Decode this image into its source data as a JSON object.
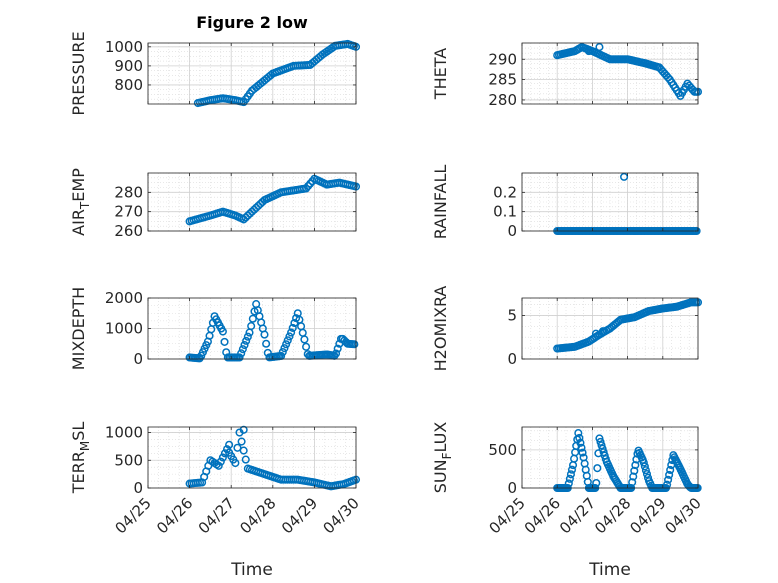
{
  "figure": {
    "title": "Figure 2 low"
  },
  "marker_color": "#0072BD",
  "x_tick_labels": [
    "04/25",
    "04/26",
    "04/27",
    "04/28",
    "04/29",
    "04/30"
  ],
  "x_label": "Time",
  "chart_data": [
    {
      "type": "scatter",
      "id": "pressure",
      "title": "Figure 2 low",
      "ylabel_main": "PRESSURE",
      "ylabel_sub": "",
      "ylabel_tail": "",
      "xlim": [
        0,
        5
      ],
      "ylim": [
        700,
        1020
      ],
      "yticks": [
        800,
        900,
        1000
      ],
      "ytick_labels": [
        "800",
        "900",
        "1000"
      ],
      "grid": true,
      "minor_grid": true,
      "knots": [
        [
          1.2,
          705
        ],
        [
          1.5,
          720
        ],
        [
          1.8,
          730
        ],
        [
          2.1,
          720
        ],
        [
          2.3,
          710
        ],
        [
          2.5,
          770
        ],
        [
          3.0,
          860
        ],
        [
          3.5,
          900
        ],
        [
          3.9,
          905
        ],
        [
          4.2,
          960
        ],
        [
          4.5,
          1005
        ],
        [
          4.8,
          1015
        ],
        [
          5.0,
          1000
        ]
      ],
      "step": 0.05,
      "extra": []
    },
    {
      "type": "scatter",
      "id": "theta",
      "title": "",
      "ylabel_main": "THETA",
      "ylabel_sub": "",
      "ylabel_tail": "",
      "xlim": [
        0,
        5
      ],
      "ylim": [
        279,
        294
      ],
      "yticks": [
        280,
        285,
        290
      ],
      "ytick_labels": [
        "280",
        "285",
        "290"
      ],
      "grid": true,
      "minor_grid": true,
      "knots": [
        [
          1.0,
          291
        ],
        [
          1.5,
          292
        ],
        [
          1.7,
          293
        ],
        [
          2.0,
          292
        ],
        [
          2.5,
          290
        ],
        [
          3.0,
          290
        ],
        [
          3.5,
          289
        ],
        [
          3.9,
          288
        ],
        [
          4.2,
          285
        ],
        [
          4.5,
          281
        ],
        [
          4.7,
          284
        ],
        [
          4.9,
          282
        ],
        [
          5.0,
          282
        ]
      ],
      "step": 0.05,
      "extra": [
        [
          2.2,
          293
        ],
        [
          1.9,
          292
        ]
      ]
    },
    {
      "type": "scatter",
      "id": "air_temp",
      "title": "",
      "ylabel_main": "AIR",
      "ylabel_sub": "T",
      "ylabel_tail": "EMP",
      "xlim": [
        0,
        5
      ],
      "ylim": [
        260,
        290
      ],
      "yticks": [
        260,
        270,
        280
      ],
      "ytick_labels": [
        "260",
        "270",
        "280"
      ],
      "grid": true,
      "minor_grid": true,
      "knots": [
        [
          1.0,
          265
        ],
        [
          1.5,
          268
        ],
        [
          1.8,
          270
        ],
        [
          2.1,
          268
        ],
        [
          2.3,
          266
        ],
        [
          2.5,
          270
        ],
        [
          2.8,
          276
        ],
        [
          3.2,
          280
        ],
        [
          3.5,
          281
        ],
        [
          3.8,
          282
        ],
        [
          4.0,
          287
        ],
        [
          4.3,
          284
        ],
        [
          4.6,
          285
        ],
        [
          5.0,
          283
        ]
      ],
      "step": 0.05,
      "extra": []
    },
    {
      "type": "scatter",
      "id": "rainfall",
      "title": "",
      "ylabel_main": "RAINFALL",
      "ylabel_sub": "",
      "ylabel_tail": "",
      "xlim": [
        0,
        5
      ],
      "ylim": [
        0,
        0.3
      ],
      "yticks": [
        0,
        0.1,
        0.2
      ],
      "ytick_labels": [
        "0",
        "0.1",
        "0.2"
      ],
      "grid": true,
      "minor_grid": true,
      "knots": [
        [
          1.0,
          0
        ],
        [
          5.0,
          0
        ]
      ],
      "step": 0.04,
      "extra": [
        [
          2.9,
          0.28
        ]
      ]
    },
    {
      "type": "scatter",
      "id": "mixdepth",
      "title": "",
      "ylabel_main": "MIXDEPTH",
      "ylabel_sub": "",
      "ylabel_tail": "",
      "xlim": [
        0,
        5
      ],
      "ylim": [
        0,
        2000
      ],
      "yticks": [
        0,
        1000,
        2000
      ],
      "ytick_labels": [
        "0",
        "1000",
        "2000"
      ],
      "grid": true,
      "minor_grid": true,
      "knots": [
        [
          1.0,
          50
        ],
        [
          1.25,
          20
        ],
        [
          1.45,
          600
        ],
        [
          1.6,
          1400
        ],
        [
          1.8,
          900
        ],
        [
          1.9,
          50
        ],
        [
          2.2,
          50
        ],
        [
          2.45,
          900
        ],
        [
          2.6,
          1800
        ],
        [
          2.8,
          800
        ],
        [
          2.9,
          50
        ],
        [
          3.2,
          100
        ],
        [
          3.45,
          900
        ],
        [
          3.6,
          1500
        ],
        [
          3.75,
          700
        ],
        [
          3.85,
          100
        ],
        [
          4.3,
          150
        ],
        [
          4.5,
          100
        ],
        [
          4.65,
          700
        ],
        [
          4.8,
          500
        ],
        [
          5.0,
          480
        ]
      ],
      "step": 0.04,
      "extra": []
    },
    {
      "type": "scatter",
      "id": "h2omixra",
      "title": "",
      "ylabel_main": "H2OMIXRA",
      "ylabel_sub": "",
      "ylabel_tail": "",
      "xlim": [
        0,
        5
      ],
      "ylim": [
        0,
        7
      ],
      "yticks": [
        0,
        5
      ],
      "ytick_labels": [
        "0",
        "5"
      ],
      "grid": true,
      "minor_grid": true,
      "knots": [
        [
          1.0,
          1.2
        ],
        [
          1.5,
          1.4
        ],
        [
          1.9,
          2.0
        ],
        [
          2.2,
          2.8
        ],
        [
          2.5,
          3.5
        ],
        [
          2.8,
          4.5
        ],
        [
          3.2,
          4.8
        ],
        [
          3.6,
          5.5
        ],
        [
          4.0,
          5.8
        ],
        [
          4.4,
          6.0
        ],
        [
          4.8,
          6.5
        ],
        [
          5.0,
          6.5
        ]
      ],
      "step": 0.05,
      "extra": [
        [
          2.1,
          2.9
        ],
        [
          2.3,
          3.2
        ]
      ]
    },
    {
      "type": "scatter",
      "id": "terr_msl",
      "title": "",
      "ylabel_main": "TERR",
      "ylabel_sub": "M",
      "ylabel_tail": "SL",
      "xlim": [
        0,
        5
      ],
      "ylim": [
        0,
        1100
      ],
      "yticks": [
        0,
        500,
        1000
      ],
      "ytick_labels": [
        "0",
        "500",
        "1000"
      ],
      "grid": true,
      "minor_grid": true,
      "knots": [
        [
          1.0,
          80
        ],
        [
          1.3,
          100
        ],
        [
          1.5,
          500
        ],
        [
          1.7,
          400
        ],
        [
          1.9,
          700
        ],
        [
          2.1,
          450
        ],
        [
          2.2,
          1000
        ],
        [
          2.4,
          350
        ],
        [
          2.8,
          250
        ],
        [
          3.2,
          150
        ],
        [
          3.6,
          150
        ],
        [
          4.0,
          100
        ],
        [
          4.4,
          30
        ],
        [
          4.7,
          70
        ],
        [
          5.0,
          150
        ]
      ],
      "step": 0.05,
      "extra": [
        [
          2.3,
          1050
        ],
        [
          1.95,
          780
        ]
      ]
    },
    {
      "type": "scatter",
      "id": "sun_flux",
      "title": "",
      "ylabel_main": "SUN",
      "ylabel_sub": "F",
      "ylabel_tail": "LUX",
      "xlim": [
        0,
        5
      ],
      "ylim": [
        0,
        800
      ],
      "yticks": [
        0,
        500
      ],
      "ytick_labels": [
        "0",
        "500"
      ],
      "grid": true,
      "minor_grid": true,
      "knots": [
        [
          1.0,
          0
        ],
        [
          1.3,
          0
        ],
        [
          1.45,
          300
        ],
        [
          1.6,
          720
        ],
        [
          1.75,
          400
        ],
        [
          1.9,
          0
        ],
        [
          2.1,
          0
        ],
        [
          2.2,
          650
        ],
        [
          2.4,
          350
        ],
        [
          2.6,
          150
        ],
        [
          2.8,
          0
        ],
        [
          3.1,
          0
        ],
        [
          3.3,
          500
        ],
        [
          3.45,
          350
        ],
        [
          3.6,
          100
        ],
        [
          3.7,
          0
        ],
        [
          4.1,
          0
        ],
        [
          4.3,
          430
        ],
        [
          4.5,
          250
        ],
        [
          4.7,
          50
        ],
        [
          4.8,
          0
        ],
        [
          5.0,
          0
        ]
      ],
      "step": 0.03,
      "extra": []
    }
  ]
}
